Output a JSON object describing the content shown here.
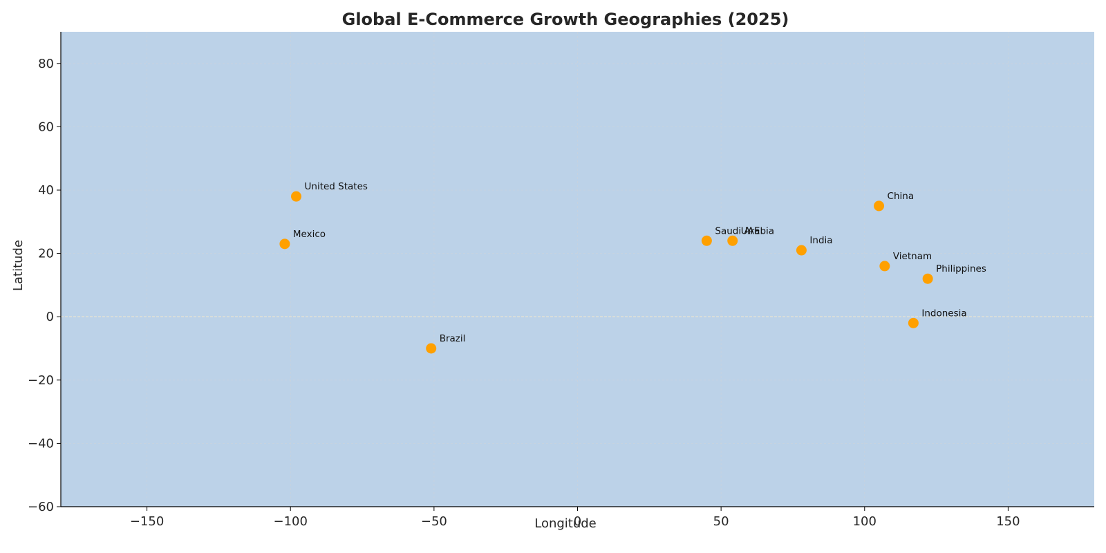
{
  "chart_data": {
    "type": "scatter",
    "title": "Global E-Commerce Growth Geographies (2025)",
    "xlabel": "Longitude",
    "ylabel": "Latitude",
    "xlim": [
      -180,
      180
    ],
    "ylim": [
      -60,
      90
    ],
    "xticks": [
      -150,
      -100,
      -50,
      0,
      50,
      100,
      150
    ],
    "yticks": [
      -60,
      -40,
      -20,
      0,
      20,
      40,
      60,
      80
    ],
    "grid": true,
    "zero_line": true,
    "colors": {
      "background": "#bcd2e8",
      "point": "#ffa000",
      "grid": "#c9d3dd",
      "zero_line": "#efe6cf"
    },
    "points": [
      {
        "label": "United States",
        "x": -98,
        "y": 38
      },
      {
        "label": "Mexico",
        "x": -102,
        "y": 23
      },
      {
        "label": "Brazil",
        "x": -51,
        "y": -10
      },
      {
        "label": "Saudi Arabia",
        "x": 45,
        "y": 24
      },
      {
        "label": "UAE",
        "x": 54,
        "y": 24
      },
      {
        "label": "India",
        "x": 78,
        "y": 21
      },
      {
        "label": "China",
        "x": 105,
        "y": 35
      },
      {
        "label": "Vietnam",
        "x": 107,
        "y": 16
      },
      {
        "label": "Philippines",
        "x": 122,
        "y": 12
      },
      {
        "label": "Indonesia",
        "x": 117,
        "y": -2
      }
    ]
  }
}
